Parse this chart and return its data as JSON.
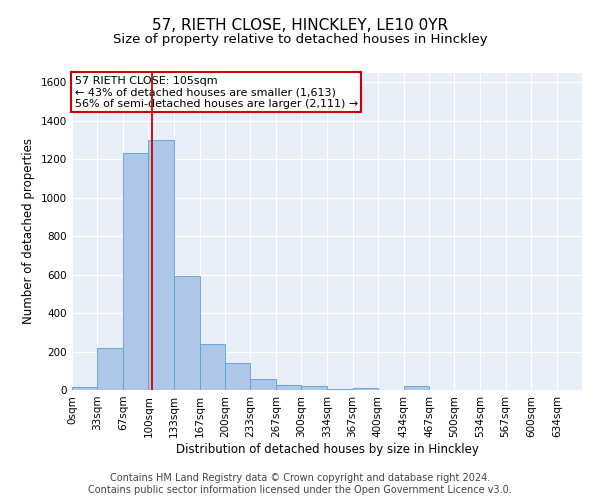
{
  "title": "57, RIETH CLOSE, HINCKLEY, LE10 0YR",
  "subtitle": "Size of property relative to detached houses in Hinckley",
  "xlabel": "Distribution of detached houses by size in Hinckley",
  "ylabel": "Number of detached properties",
  "footer_line1": "Contains HM Land Registry data © Crown copyright and database right 2024.",
  "footer_line2": "Contains public sector information licensed under the Open Government Licence v3.0.",
  "bin_edges": [
    0,
    33,
    67,
    100,
    133,
    167,
    200,
    233,
    267,
    300,
    334,
    367,
    400,
    434,
    467,
    500,
    534,
    567,
    600,
    634,
    667
  ],
  "bar_heights": [
    15,
    220,
    1230,
    1300,
    595,
    240,
    140,
    55,
    25,
    20,
    5,
    10,
    0,
    20,
    0,
    0,
    0,
    0,
    0,
    0
  ],
  "bar_color": "#aec6e8",
  "bar_edge_color": "#5a9fd4",
  "red_line_x": 105,
  "annotation_text": "57 RIETH CLOSE: 105sqm\n← 43% of detached houses are smaller (1,613)\n56% of semi-detached houses are larger (2,111) →",
  "annotation_box_color": "#ffffff",
  "annotation_box_edge": "#cc0000",
  "annotation_text_color": "#000000",
  "red_line_color": "#cc0000",
  "ylim": [
    0,
    1650
  ],
  "yticks": [
    0,
    200,
    400,
    600,
    800,
    1000,
    1200,
    1400,
    1600
  ],
  "background_color": "#e8eef8",
  "title_fontsize": 11,
  "subtitle_fontsize": 9.5,
  "axis_label_fontsize": 8.5,
  "tick_fontsize": 7.5,
  "footer_fontsize": 7,
  "ann_fontsize": 8
}
